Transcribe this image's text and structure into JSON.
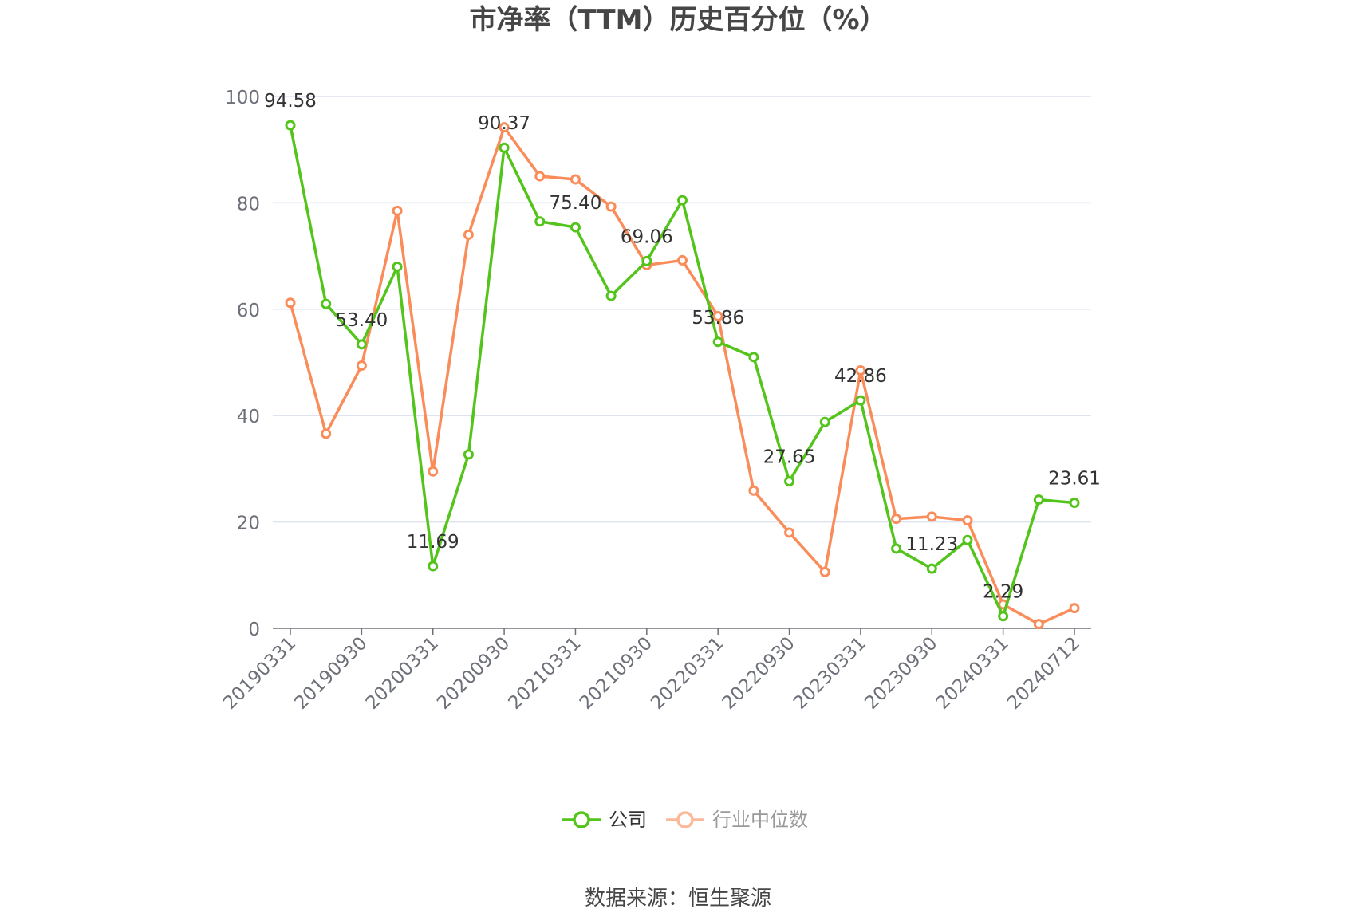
{
  "chart_data": {
    "type": "line",
    "title": "市净率（TTM）历史百分位（%）",
    "x": [
      "20190331",
      "20190630",
      "20190930",
      "20191231",
      "20200331",
      "20200630",
      "20200930",
      "20201231",
      "20210331",
      "20210630",
      "20210930",
      "20211231",
      "20220331",
      "20220630",
      "20220930",
      "20221231",
      "20230331",
      "20230630",
      "20230930",
      "20231231",
      "20240331",
      "20240630",
      "20240712"
    ],
    "x_tick_labels": [
      "20190331",
      "20190930",
      "20200331",
      "20200930",
      "20210331",
      "20210930",
      "20220331",
      "20220930",
      "20230331",
      "20230930",
      "20240331",
      "20240712"
    ],
    "x_tick_indices": [
      0,
      2,
      4,
      6,
      8,
      10,
      12,
      14,
      16,
      18,
      20,
      22
    ],
    "ylim": [
      0,
      100
    ],
    "y_ticks": [
      0,
      20,
      40,
      60,
      80,
      100
    ],
    "grid": true,
    "legend_position": "bottom",
    "series": [
      {
        "name": "公司",
        "color": "#52c41a",
        "values": [
          94.58,
          61.0,
          53.4,
          68.0,
          11.69,
          32.7,
          90.37,
          76.5,
          75.4,
          62.5,
          69.06,
          80.5,
          53.86,
          51.0,
          27.65,
          38.8,
          42.86,
          15.0,
          11.23,
          16.6,
          2.29,
          24.2,
          23.61
        ],
        "label_indices": [
          0,
          2,
          4,
          6,
          8,
          10,
          12,
          14,
          16,
          18,
          20,
          22
        ]
      },
      {
        "name": "行业中位数",
        "color": "#fa8c5a",
        "values": [
          61.2,
          36.6,
          49.4,
          78.5,
          29.5,
          74.0,
          94.2,
          85.0,
          84.4,
          79.3,
          68.3,
          69.2,
          58.7,
          25.9,
          18.0,
          10.6,
          48.5,
          20.6,
          21.0,
          20.3,
          4.5,
          0.8,
          3.8
        ],
        "label_indices": []
      }
    ]
  },
  "legend": {
    "items": [
      "公司",
      "行业中位数"
    ]
  },
  "source": "数据来源：恒生聚源"
}
